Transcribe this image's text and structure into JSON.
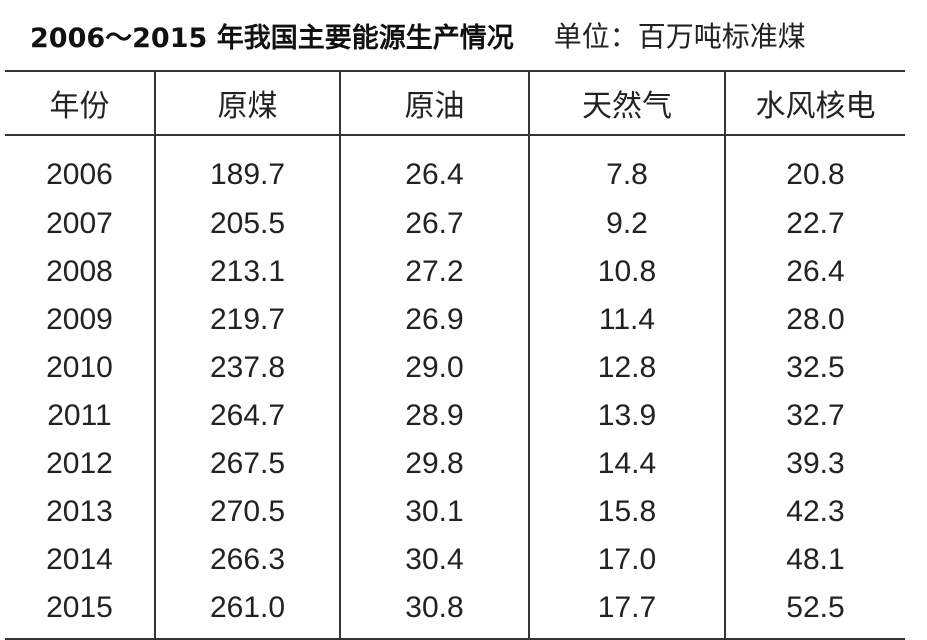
{
  "header": {
    "title": "2006～2015 年我国主要能源生产情况",
    "unit": "单位：百万吨标准煤"
  },
  "chart_data": {
    "type": "table",
    "title": "2006～2015 年我国主要能源生产情况",
    "unit": "单位：百万吨标准煤",
    "columns": [
      "年份",
      "原煤",
      "原油",
      "天然气",
      "水风核电"
    ],
    "rows": [
      [
        "2006",
        "189.7",
        "26.4",
        "7.8",
        "20.8"
      ],
      [
        "2007",
        "205.5",
        "26.7",
        "9.2",
        "22.7"
      ],
      [
        "2008",
        "213.1",
        "27.2",
        "10.8",
        "26.4"
      ],
      [
        "2009",
        "219.7",
        "26.9",
        "11.4",
        "28.0"
      ],
      [
        "2010",
        "237.8",
        "29.0",
        "12.8",
        "32.5"
      ],
      [
        "2011",
        "264.7",
        "28.9",
        "13.9",
        "32.7"
      ],
      [
        "2012",
        "267.5",
        "29.8",
        "14.4",
        "39.3"
      ],
      [
        "2013",
        "270.5",
        "30.1",
        "15.8",
        "42.3"
      ],
      [
        "2014",
        "266.3",
        "30.4",
        "17.0",
        "48.1"
      ],
      [
        "2015",
        "261.0",
        "30.8",
        "17.7",
        "52.5"
      ]
    ]
  }
}
